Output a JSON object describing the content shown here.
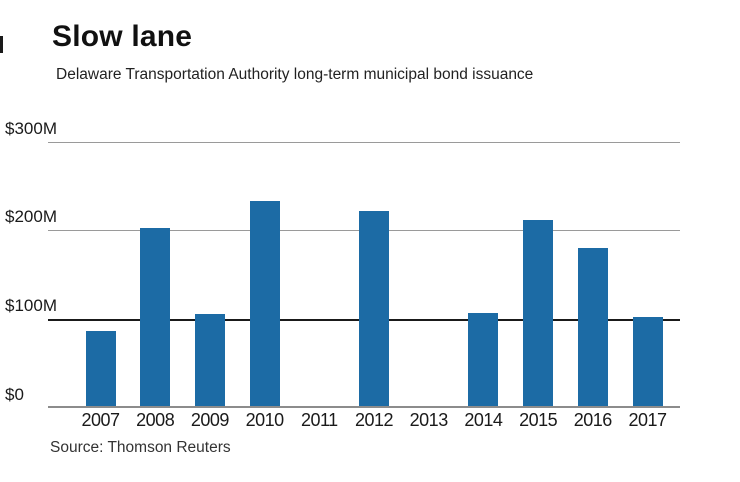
{
  "chart_data": {
    "type": "bar",
    "title": "Slow lane",
    "subtitle": "Delaware Transportation Authority long-term municipal bond issuance",
    "categories": [
      "2007",
      "2008",
      "2009",
      "2010",
      "2011",
      "2012",
      "2013",
      "2014",
      "2015",
      "2016",
      "2017"
    ],
    "values": [
      85,
      202,
      104,
      233,
      0,
      222,
      0,
      106,
      211,
      180,
      101
    ],
    "unit": "$M",
    "ylim": [
      0,
      300
    ],
    "y_ticks": [
      "$300M",
      "$200M",
      "$100M",
      "$0"
    ],
    "grid": "horizontal",
    "legend": "none",
    "bar_color": "#1c6ba5",
    "gridline_color": "#9a9a9a",
    "hundred_line_color": "#1a1a1a",
    "baseline_color": "#8c8c8c",
    "source": "Source: Thomson Reuters"
  }
}
